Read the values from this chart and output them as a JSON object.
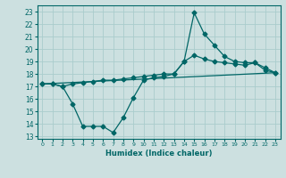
{
  "title": "",
  "xlabel": "Humidex (Indice chaleur)",
  "ylabel": "",
  "bg_color": "#cce0e0",
  "line_color": "#006666",
  "grid_color": "#aacccc",
  "xlim": [
    -0.5,
    23.5
  ],
  "ylim": [
    12.8,
    23.5
  ],
  "yticks": [
    13,
    14,
    15,
    16,
    17,
    18,
    19,
    20,
    21,
    22,
    23
  ],
  "xticks": [
    0,
    1,
    2,
    3,
    4,
    5,
    6,
    7,
    8,
    9,
    10,
    11,
    12,
    13,
    14,
    15,
    16,
    17,
    18,
    19,
    20,
    21,
    22,
    23
  ],
  "line1_x": [
    0,
    1,
    2,
    3,
    4,
    5,
    6,
    7,
    8,
    9,
    10,
    11,
    12,
    13,
    14,
    15,
    16,
    17,
    18,
    19,
    20,
    21,
    22,
    23
  ],
  "line1_y": [
    17.2,
    17.2,
    17.0,
    17.2,
    17.3,
    17.4,
    17.5,
    17.5,
    17.6,
    17.7,
    17.8,
    17.9,
    18.0,
    18.0,
    19.0,
    19.5,
    19.2,
    19.0,
    18.9,
    18.8,
    18.7,
    18.9,
    18.5,
    18.1
  ],
  "line2_x": [
    0,
    1,
    2,
    3,
    4,
    5,
    6,
    7,
    8,
    9,
    10,
    11,
    12,
    13,
    14,
    15,
    16,
    17,
    18,
    19,
    20,
    21,
    22,
    23
  ],
  "line2_y": [
    17.2,
    17.2,
    17.0,
    15.6,
    13.8,
    13.8,
    13.8,
    13.3,
    14.5,
    16.1,
    17.5,
    17.7,
    17.8,
    18.0,
    19.0,
    22.9,
    21.2,
    20.3,
    19.4,
    19.0,
    18.9,
    18.9,
    18.3,
    18.1
  ],
  "line3_x": [
    0,
    23
  ],
  "line3_y": [
    17.2,
    18.1
  ],
  "marker_size": 2.5,
  "linewidth": 0.9
}
